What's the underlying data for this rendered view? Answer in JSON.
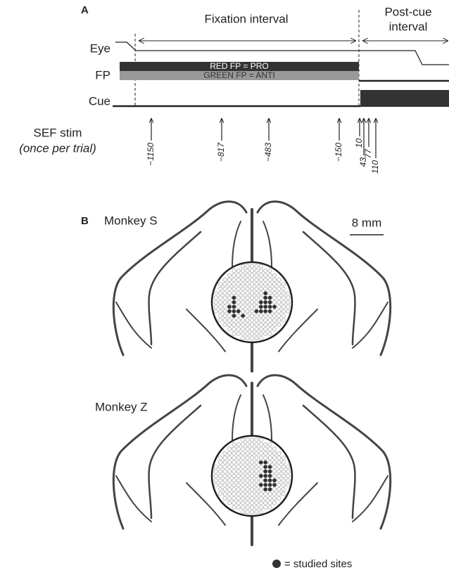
{
  "panel_a": {
    "label": "A",
    "fixation_label": "Fixation interval",
    "post_cue_label": [
      "Post-cue",
      "interval"
    ],
    "rows": [
      "Eye",
      "FP",
      "Cue"
    ],
    "fp_text": [
      "RED FP = PRO",
      "GREEN FP = ANTI"
    ],
    "stim_label": "SEF stim",
    "stim_note": "(once per trial)",
    "stim_times": [
      "−1150",
      "−817",
      "−483",
      "−150",
      "10",
      "43",
      "77",
      "110"
    ]
  },
  "panel_b": {
    "label": "B",
    "monkeys": [
      "Monkey S",
      "Monkey Z"
    ],
    "scale": "8 mm",
    "legend": "= studied sites"
  }
}
